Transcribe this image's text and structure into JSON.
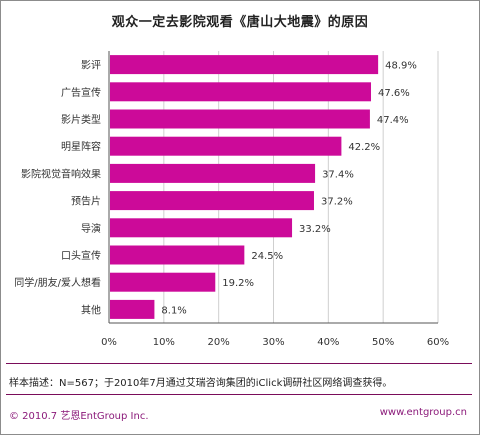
{
  "chart_data": {
    "type": "bar",
    "orientation": "horizontal",
    "title": "观众一定去影院观看《唐山大地震》的原因",
    "categories": [
      "影评",
      "广告宣传",
      "影片类型",
      "明星阵容",
      "影院视觉音响效果",
      "预告片",
      "导演",
      "口头宣传",
      "同学/朋友/爱人想看",
      "其他"
    ],
    "values": [
      48.9,
      47.6,
      47.4,
      42.2,
      37.4,
      37.2,
      33.2,
      24.5,
      19.2,
      8.1
    ],
    "value_labels": [
      "48.9%",
      "47.6%",
      "47.4%",
      "42.2%",
      "37.4%",
      "37.2%",
      "33.2%",
      "24.5%",
      "19.2%",
      "8.1%"
    ],
    "xlim": [
      0,
      60
    ],
    "ticks": [
      0,
      10,
      20,
      30,
      40,
      50,
      60
    ],
    "tick_labels": [
      "0%",
      "10%",
      "20%",
      "30%",
      "40%",
      "50%",
      "60%"
    ],
    "xlabel": "",
    "ylabel": "",
    "grid": true,
    "legend": "none",
    "bar_color": "#cc0a99"
  },
  "note": "样本描述：N=567；于2010年7月通过艾瑞咨询集团的iClick调研社区网络调查获得。",
  "footer": {
    "copyright": "© 2010.7 艺恩EntGroup Inc.",
    "website": "www.entgroup.cn"
  },
  "colors": {
    "divider": "#7a0c5a",
    "footer_text": "#8b1a7a"
  }
}
